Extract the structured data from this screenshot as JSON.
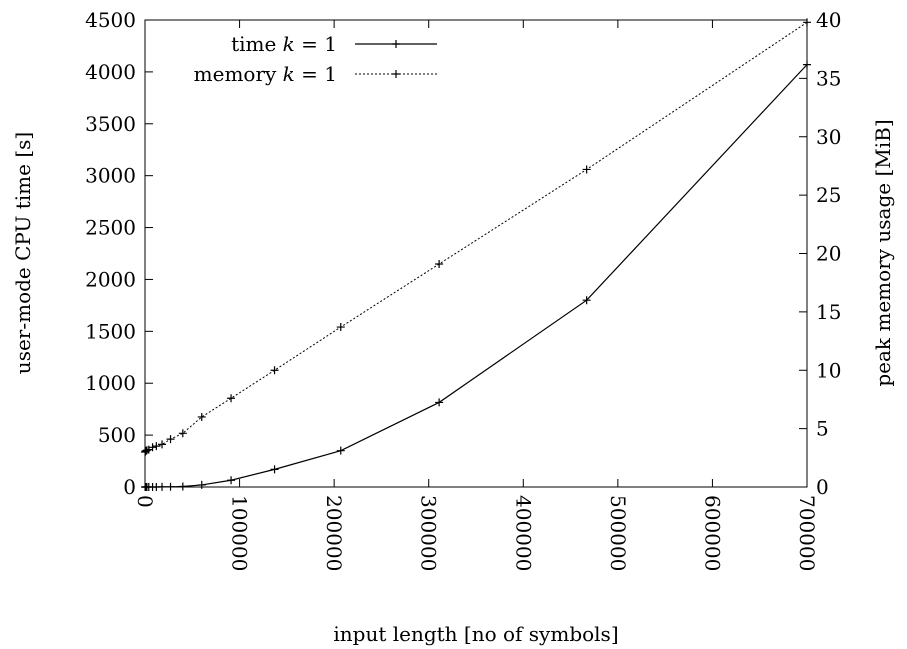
{
  "chart_data": {
    "type": "line",
    "xlabel": "input length [no of symbols]",
    "ylabel": "user-mode CPU time [s]",
    "y2label": "peak memory usage [MiB]",
    "xlim": [
      0,
      700000
    ],
    "ylim": [
      0,
      4500
    ],
    "y2lim": [
      0,
      40
    ],
    "x_ticks": [
      "0",
      "100000",
      "200000",
      "300000",
      "400000",
      "500000",
      "600000",
      "700000"
    ],
    "y_ticks": [
      "0",
      "500",
      "1000",
      "1500",
      "2000",
      "2500",
      "3000",
      "3500",
      "4000",
      "4500"
    ],
    "y2_ticks": [
      "0",
      "5",
      "10",
      "15",
      "20",
      "25",
      "30",
      "35",
      "40"
    ],
    "legend_position": "top-left",
    "grid": false,
    "series": [
      {
        "name": "time k = 1",
        "axis": "left",
        "style": "solid",
        "marker": "+",
        "x": [
          100,
          500,
          1000,
          2000,
          4000,
          8000,
          12000,
          18000,
          27000,
          40000,
          60000,
          91000,
          137000,
          207000,
          311000,
          467000,
          700000
        ],
        "y": [
          0,
          0,
          0,
          0,
          0,
          0,
          0,
          1,
          2,
          5,
          20,
          65,
          170,
          350,
          815,
          1800,
          4070
        ]
      },
      {
        "name": "memory k = 1",
        "axis": "right",
        "style": "dotted",
        "marker": "+",
        "x": [
          100,
          500,
          1000,
          2000,
          4000,
          8000,
          12000,
          18000,
          27000,
          40000,
          60000,
          91000,
          137000,
          207000,
          311000,
          467000,
          700000
        ],
        "y": [
          3.0,
          3.05,
          3.1,
          3.15,
          3.2,
          3.4,
          3.5,
          3.65,
          4.1,
          4.6,
          6.0,
          7.6,
          10.0,
          13.7,
          19.1,
          27.2,
          39.8
        ]
      }
    ]
  },
  "legend": {
    "items": [
      {
        "label_main": "time ",
        "label_var": "k",
        "label_rest": " = 1"
      },
      {
        "label_main": "memory ",
        "label_var": "k",
        "label_rest": " = 1"
      }
    ]
  }
}
